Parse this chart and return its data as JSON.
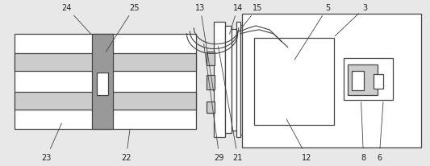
{
  "bg_color": "#e8e8e8",
  "line_color": "#444444",
  "fill_color": "#ffffff",
  "dark_color": "#999999",
  "mid_color": "#cccccc",
  "label_color": "#222222",
  "fig_width": 5.33,
  "fig_height": 2.07,
  "dpi": 100
}
